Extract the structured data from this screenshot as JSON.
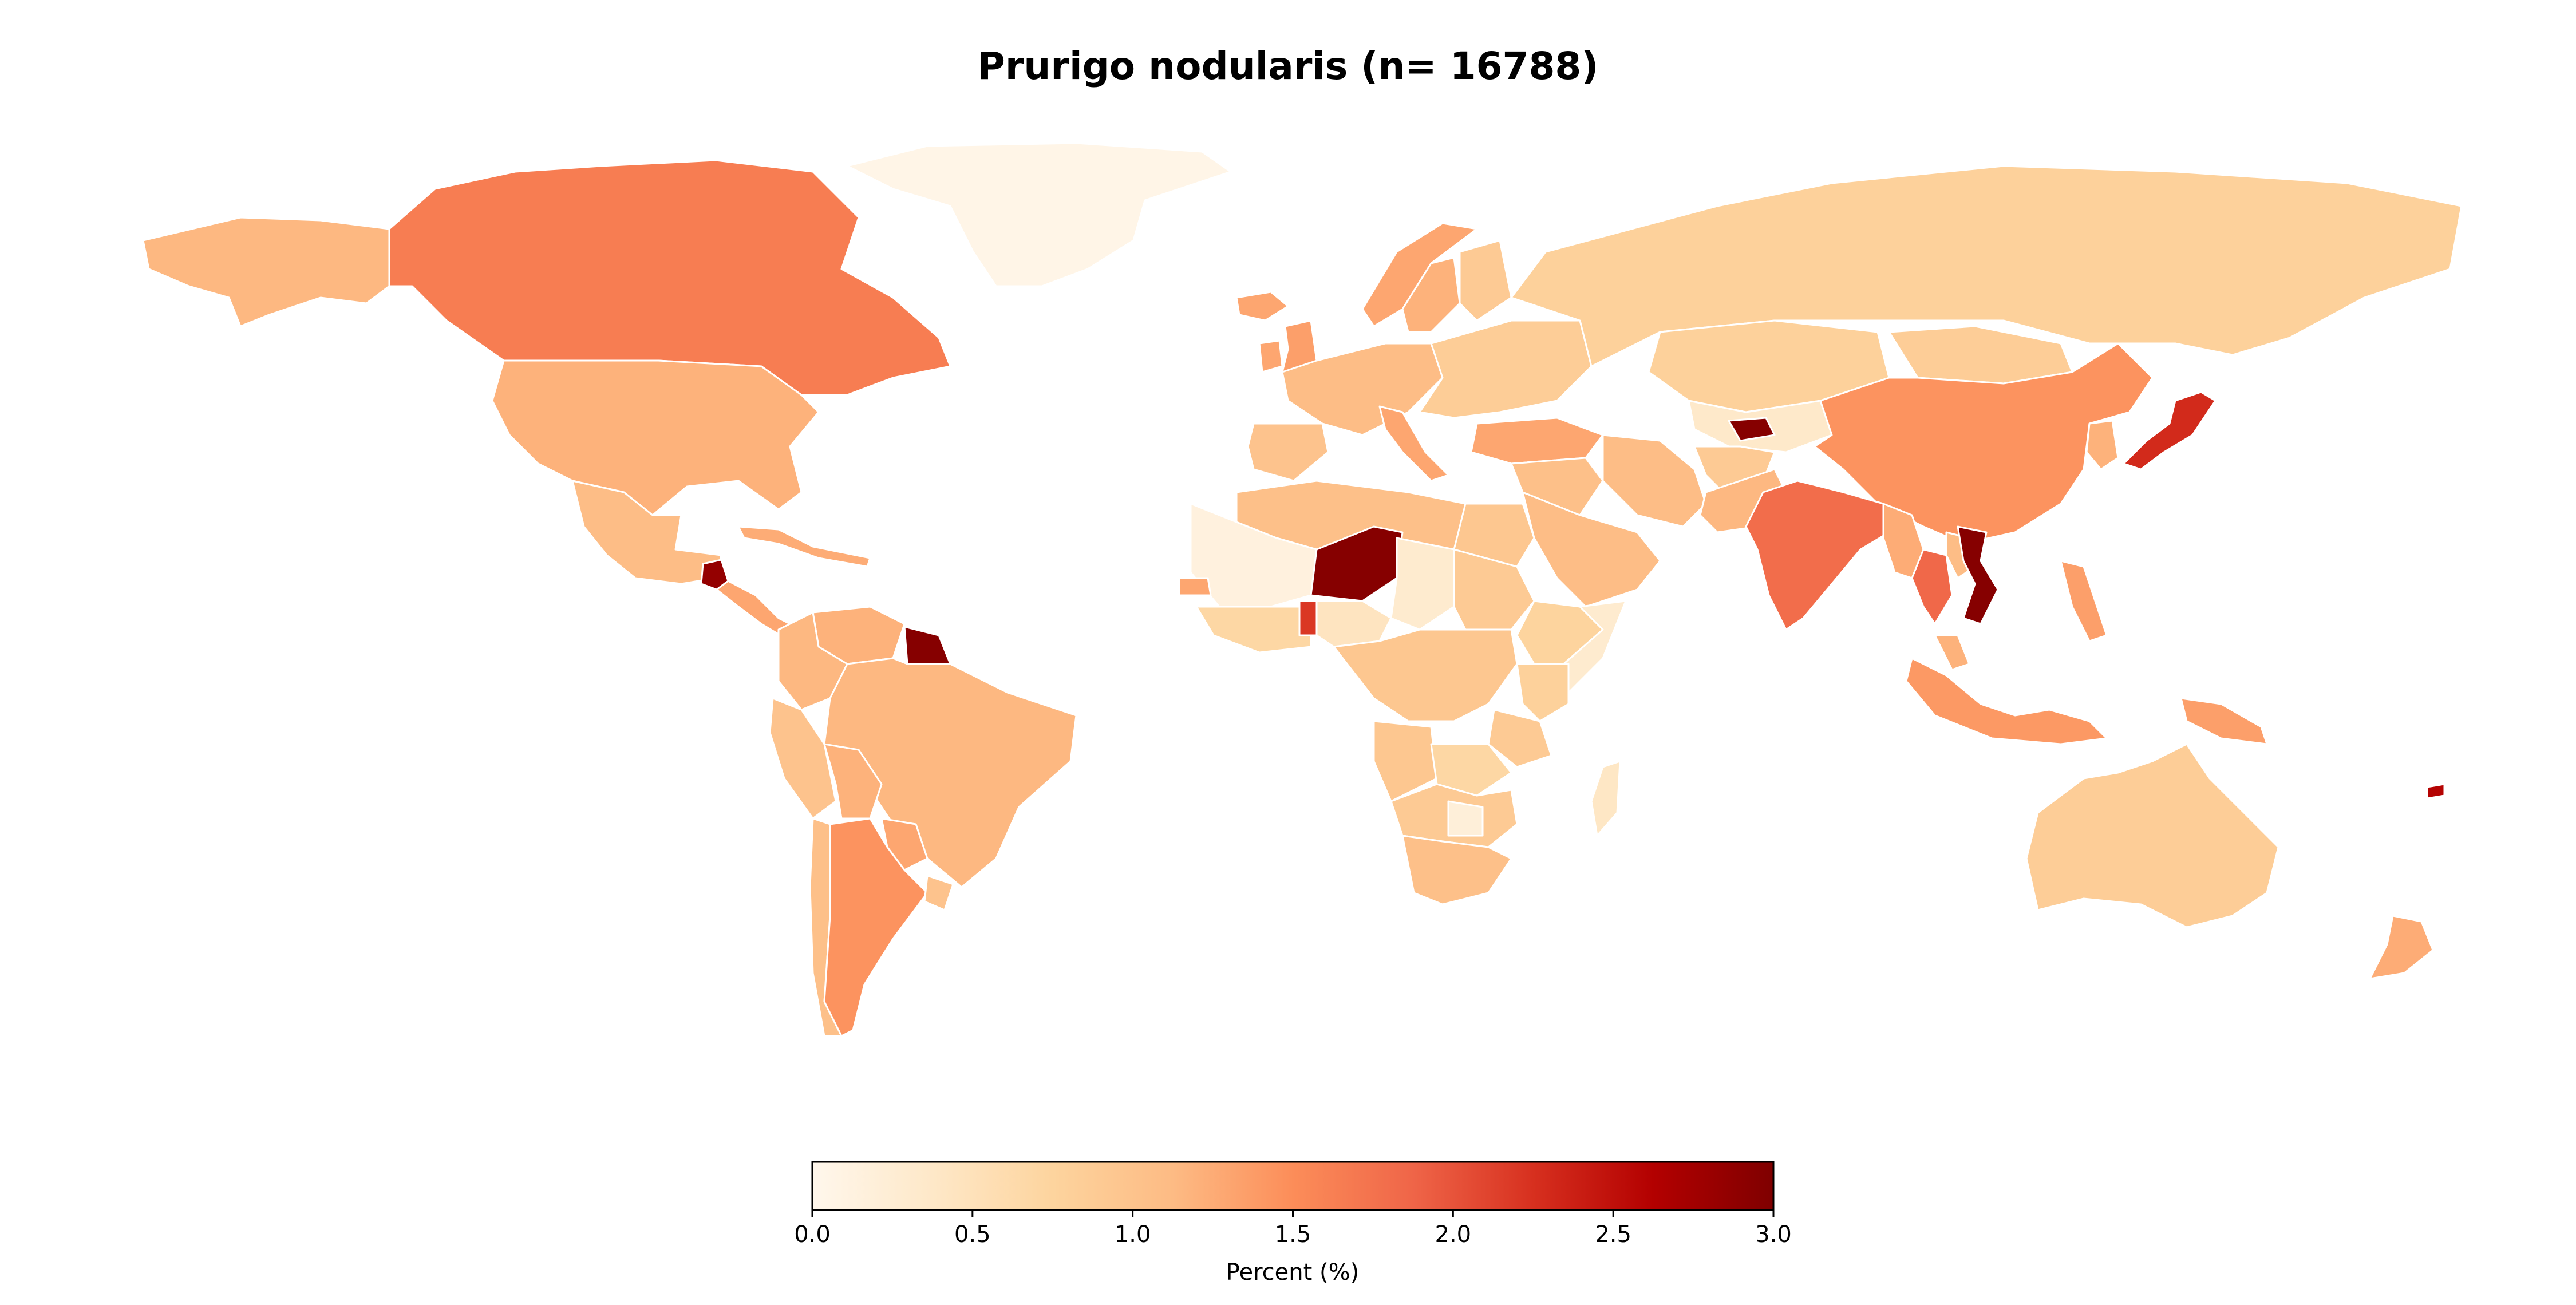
{
  "chart_data": {
    "type": "choropleth",
    "title": "Prurigo nodularis (n= 16788)",
    "colorbar": {
      "label": "Percent (%)",
      "min": 0.0,
      "max": 3.0,
      "ticks": [
        "0.0",
        "0.5",
        "1.0",
        "1.5",
        "2.0",
        "2.5",
        "3.0"
      ],
      "tick_values": [
        0.0,
        0.5,
        1.0,
        1.5,
        2.0,
        2.5,
        3.0
      ],
      "colormap": "OrRd",
      "stops": [
        "#fff7ec",
        "#fee8c8",
        "#fdd49e",
        "#fdbb84",
        "#fc8d59",
        "#ef6548",
        "#d7301f",
        "#b30000",
        "#7f0000"
      ],
      "position": "bottom-center"
    },
    "regions": [
      {
        "name": "Greenland",
        "value": 0.05
      },
      {
        "name": "Alaska",
        "value": 1.15
      },
      {
        "name": "Canada",
        "value": 1.65
      },
      {
        "name": "United States",
        "value": 1.2
      },
      {
        "name": "Mexico",
        "value": 1.1
      },
      {
        "name": "Guatemala",
        "value": 2.85
      },
      {
        "name": "Central America",
        "value": 1.3
      },
      {
        "name": "Caribbean",
        "value": 1.25
      },
      {
        "name": "Venezuela",
        "value": 1.2
      },
      {
        "name": "Colombia",
        "value": 1.15
      },
      {
        "name": "Guyana",
        "value": 2.95
      },
      {
        "name": "Peru",
        "value": 1.0
      },
      {
        "name": "Brazil",
        "value": 1.15
      },
      {
        "name": "Bolivia",
        "value": 1.2
      },
      {
        "name": "Paraguay",
        "value": 1.3
      },
      {
        "name": "Chile",
        "value": 1.05
      },
      {
        "name": "Argentina",
        "value": 1.45
      },
      {
        "name": "Uruguay",
        "value": 1.0
      },
      {
        "name": "Iceland",
        "value": 1.3
      },
      {
        "name": "Ireland",
        "value": 1.3
      },
      {
        "name": "United Kingdom",
        "value": 1.35
      },
      {
        "name": "Norway",
        "value": 1.3
      },
      {
        "name": "Sweden",
        "value": 1.2
      },
      {
        "name": "Finland",
        "value": 0.9
      },
      {
        "name": "Western Europe",
        "value": 1.1
      },
      {
        "name": "Spain",
        "value": 1.0
      },
      {
        "name": "Italy",
        "value": 1.3
      },
      {
        "name": "Eastern Europe",
        "value": 0.85
      },
      {
        "name": "Turkey",
        "value": 1.3
      },
      {
        "name": "Russia",
        "value": 0.8
      },
      {
        "name": "Kazakhstan",
        "value": 0.8
      },
      {
        "name": "Central Asia",
        "value": 0.35
      },
      {
        "name": "Tajikistan",
        "value": 2.95
      },
      {
        "name": "Mongolia",
        "value": 0.85
      },
      {
        "name": "China",
        "value": 1.45
      },
      {
        "name": "Korea",
        "value": 1.2
      },
      {
        "name": "Japan",
        "value": 2.3
      },
      {
        "name": "Middle East",
        "value": 1.05
      },
      {
        "name": "Saudi Arabia",
        "value": 1.1
      },
      {
        "name": "Iran",
        "value": 1.1
      },
      {
        "name": "Afghanistan",
        "value": 0.9
      },
      {
        "name": "Pakistan",
        "value": 1.15
      },
      {
        "name": "India",
        "value": 1.8
      },
      {
        "name": "Myanmar",
        "value": 1.25
      },
      {
        "name": "Thailand",
        "value": 1.85
      },
      {
        "name": "Laos",
        "value": 1.1
      },
      {
        "name": "Vietnam",
        "value": 2.95
      },
      {
        "name": "Malaysia",
        "value": 1.2
      },
      {
        "name": "Indonesia",
        "value": 1.4
      },
      {
        "name": "Philippines",
        "value": 1.35
      },
      {
        "name": "Papua New Guinea",
        "value": 1.35
      },
      {
        "name": "Australia",
        "value": 0.85
      },
      {
        "name": "New Zealand",
        "value": 1.25
      },
      {
        "name": "Fiji",
        "value": 2.6
      },
      {
        "name": "North Africa",
        "value": 1.05
      },
      {
        "name": "Egypt",
        "value": 0.95
      },
      {
        "name": "Mali",
        "value": 0.15
      },
      {
        "name": "Niger",
        "value": 2.95
      },
      {
        "name": "Chad",
        "value": 0.3
      },
      {
        "name": "Sudan",
        "value": 0.9
      },
      {
        "name": "Ethiopia",
        "value": 0.75
      },
      {
        "name": "Somalia",
        "value": 0.3
      },
      {
        "name": "West Africa",
        "value": 0.7
      },
      {
        "name": "Senegal",
        "value": 1.3
      },
      {
        "name": "Benin",
        "value": 2.2
      },
      {
        "name": "Nigeria",
        "value": 0.45
      },
      {
        "name": "Central Africa",
        "value": 0.95
      },
      {
        "name": "Kenya",
        "value": 0.8
      },
      {
        "name": "Tanzania",
        "value": 0.9
      },
      {
        "name": "Angola",
        "value": 0.95
      },
      {
        "name": "Zambia",
        "value": 0.7
      },
      {
        "name": "Southern Africa",
        "value": 0.9
      },
      {
        "name": "Botswana",
        "value": 0.2
      },
      {
        "name": "South Africa",
        "value": 1.05
      },
      {
        "name": "Madagascar",
        "value": 0.4
      }
    ]
  }
}
